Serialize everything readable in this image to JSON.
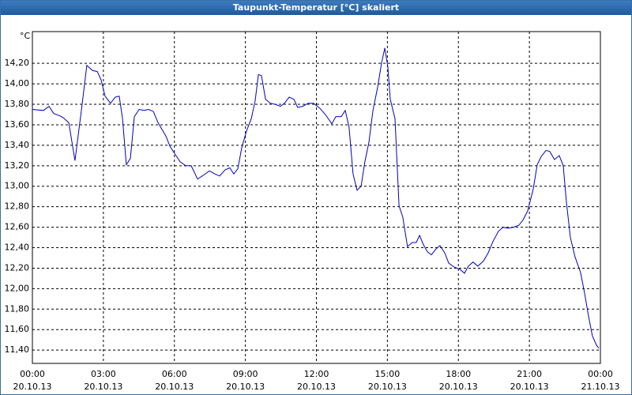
{
  "chart_data": {
    "type": "line",
    "title": "Taupunkt-Temperatur [°C] skaliert",
    "y_label": "°C",
    "x": [
      0.0,
      0.47,
      0.7,
      0.9,
      1.13,
      1.3,
      1.54,
      1.8,
      2.07,
      2.3,
      2.54,
      2.74,
      2.9,
      3.07,
      3.3,
      3.5,
      3.67,
      3.81,
      3.97,
      4.14,
      4.31,
      4.51,
      4.71,
      4.91,
      5.11,
      5.31,
      5.64,
      5.81,
      6.04,
      6.24,
      6.48,
      6.71,
      6.98,
      7.24,
      7.48,
      7.71,
      7.91,
      8.14,
      8.34,
      8.51,
      8.68,
      8.85,
      9.05,
      9.25,
      9.41,
      9.55,
      9.68,
      9.85,
      10.05,
      10.25,
      10.48,
      10.65,
      10.85,
      11.05,
      11.21,
      11.42,
      11.65,
      11.88,
      12.15,
      12.38,
      12.65,
      12.82,
      13.05,
      13.22,
      13.38,
      13.55,
      13.72,
      13.89,
      14.05,
      14.22,
      14.39,
      14.59,
      14.75,
      14.89,
      15.02,
      15.12,
      15.32,
      15.49,
      15.65,
      15.85,
      16.05,
      16.22,
      16.36,
      16.52,
      16.69,
      16.86,
      17.06,
      17.22,
      17.42,
      17.59,
      17.82,
      18.06,
      18.26,
      18.42,
      18.62,
      18.82,
      19.06,
      19.26,
      19.46,
      19.69,
      19.89,
      20.09,
      20.33,
      20.56,
      20.73,
      20.93,
      21.16,
      21.33,
      21.5,
      21.7,
      21.86,
      22.06,
      22.26,
      22.43,
      22.56,
      22.73,
      22.93,
      23.16,
      23.33,
      23.5,
      23.66,
      23.83,
      23.93
    ],
    "series": [
      {
        "name": "Taupunkt-Temperatur",
        "color": "#0000c0",
        "values": [
          13.75,
          13.74,
          13.78,
          13.71,
          13.69,
          13.67,
          13.62,
          13.25,
          13.74,
          14.18,
          14.13,
          14.12,
          14.04,
          13.88,
          13.81,
          13.87,
          13.88,
          13.66,
          13.21,
          13.27,
          13.68,
          13.75,
          13.74,
          13.75,
          13.73,
          13.62,
          13.49,
          13.39,
          13.31,
          13.24,
          13.2,
          13.2,
          13.07,
          13.11,
          13.15,
          13.12,
          13.1,
          13.16,
          13.18,
          13.12,
          13.17,
          13.38,
          13.54,
          13.66,
          13.83,
          14.09,
          14.08,
          13.85,
          13.81,
          13.8,
          13.78,
          13.81,
          13.87,
          13.85,
          13.77,
          13.78,
          13.81,
          13.81,
          13.76,
          13.7,
          13.61,
          13.68,
          13.68,
          13.74,
          13.58,
          13.12,
          12.96,
          13.0,
          13.24,
          13.43,
          13.74,
          13.97,
          14.2,
          14.35,
          14.16,
          13.85,
          13.66,
          12.81,
          12.7,
          12.41,
          12.45,
          12.45,
          12.52,
          12.43,
          12.36,
          12.33,
          12.39,
          12.42,
          12.35,
          12.25,
          12.21,
          12.19,
          12.15,
          12.22,
          12.26,
          12.22,
          12.27,
          12.35,
          12.46,
          12.56,
          12.6,
          12.59,
          12.6,
          12.62,
          12.67,
          12.76,
          12.97,
          13.21,
          13.29,
          13.35,
          13.34,
          13.26,
          13.3,
          13.2,
          12.85,
          12.5,
          12.31,
          12.16,
          11.96,
          11.73,
          11.54,
          11.45,
          11.42
        ]
      }
    ],
    "xlim": [
      0,
      24
    ],
    "xticks": [
      {
        "value": 0,
        "label": "00:00\n20.10.13"
      },
      {
        "value": 3,
        "label": "03:00\n20.10.13"
      },
      {
        "value": 6,
        "label": "06:00\n20.10.13"
      },
      {
        "value": 9,
        "label": "09:00\n20.10.13"
      },
      {
        "value": 12,
        "label": "12:00\n20.10.13"
      },
      {
        "value": 15,
        "label": "15:00\n20.10.13"
      },
      {
        "value": 18,
        "label": "18:00\n20.10.13"
      },
      {
        "value": 21,
        "label": "21:00\n20.10.13"
      },
      {
        "value": 24,
        "label": "00:00\n21.10.13"
      }
    ],
    "ylim": [
      11.27,
      14.51
    ],
    "yticks": [
      {
        "value": 11.4,
        "label": "11,40"
      },
      {
        "value": 11.6,
        "label": "11,60"
      },
      {
        "value": 11.8,
        "label": "11,80"
      },
      {
        "value": 12.0,
        "label": "12,00"
      },
      {
        "value": 12.2,
        "label": "12,20"
      },
      {
        "value": 12.4,
        "label": "12,40"
      },
      {
        "value": 12.6,
        "label": "12,60"
      },
      {
        "value": 12.8,
        "label": "12,80"
      },
      {
        "value": 13.0,
        "label": "13,00"
      },
      {
        "value": 13.2,
        "label": "13,20"
      },
      {
        "value": 13.4,
        "label": "13,40"
      },
      {
        "value": 13.6,
        "label": "13,60"
      },
      {
        "value": 13.8,
        "label": "13,80"
      },
      {
        "value": 14.0,
        "label": "14,00"
      },
      {
        "value": 14.2,
        "label": "14,20"
      }
    ],
    "grid": true
  }
}
